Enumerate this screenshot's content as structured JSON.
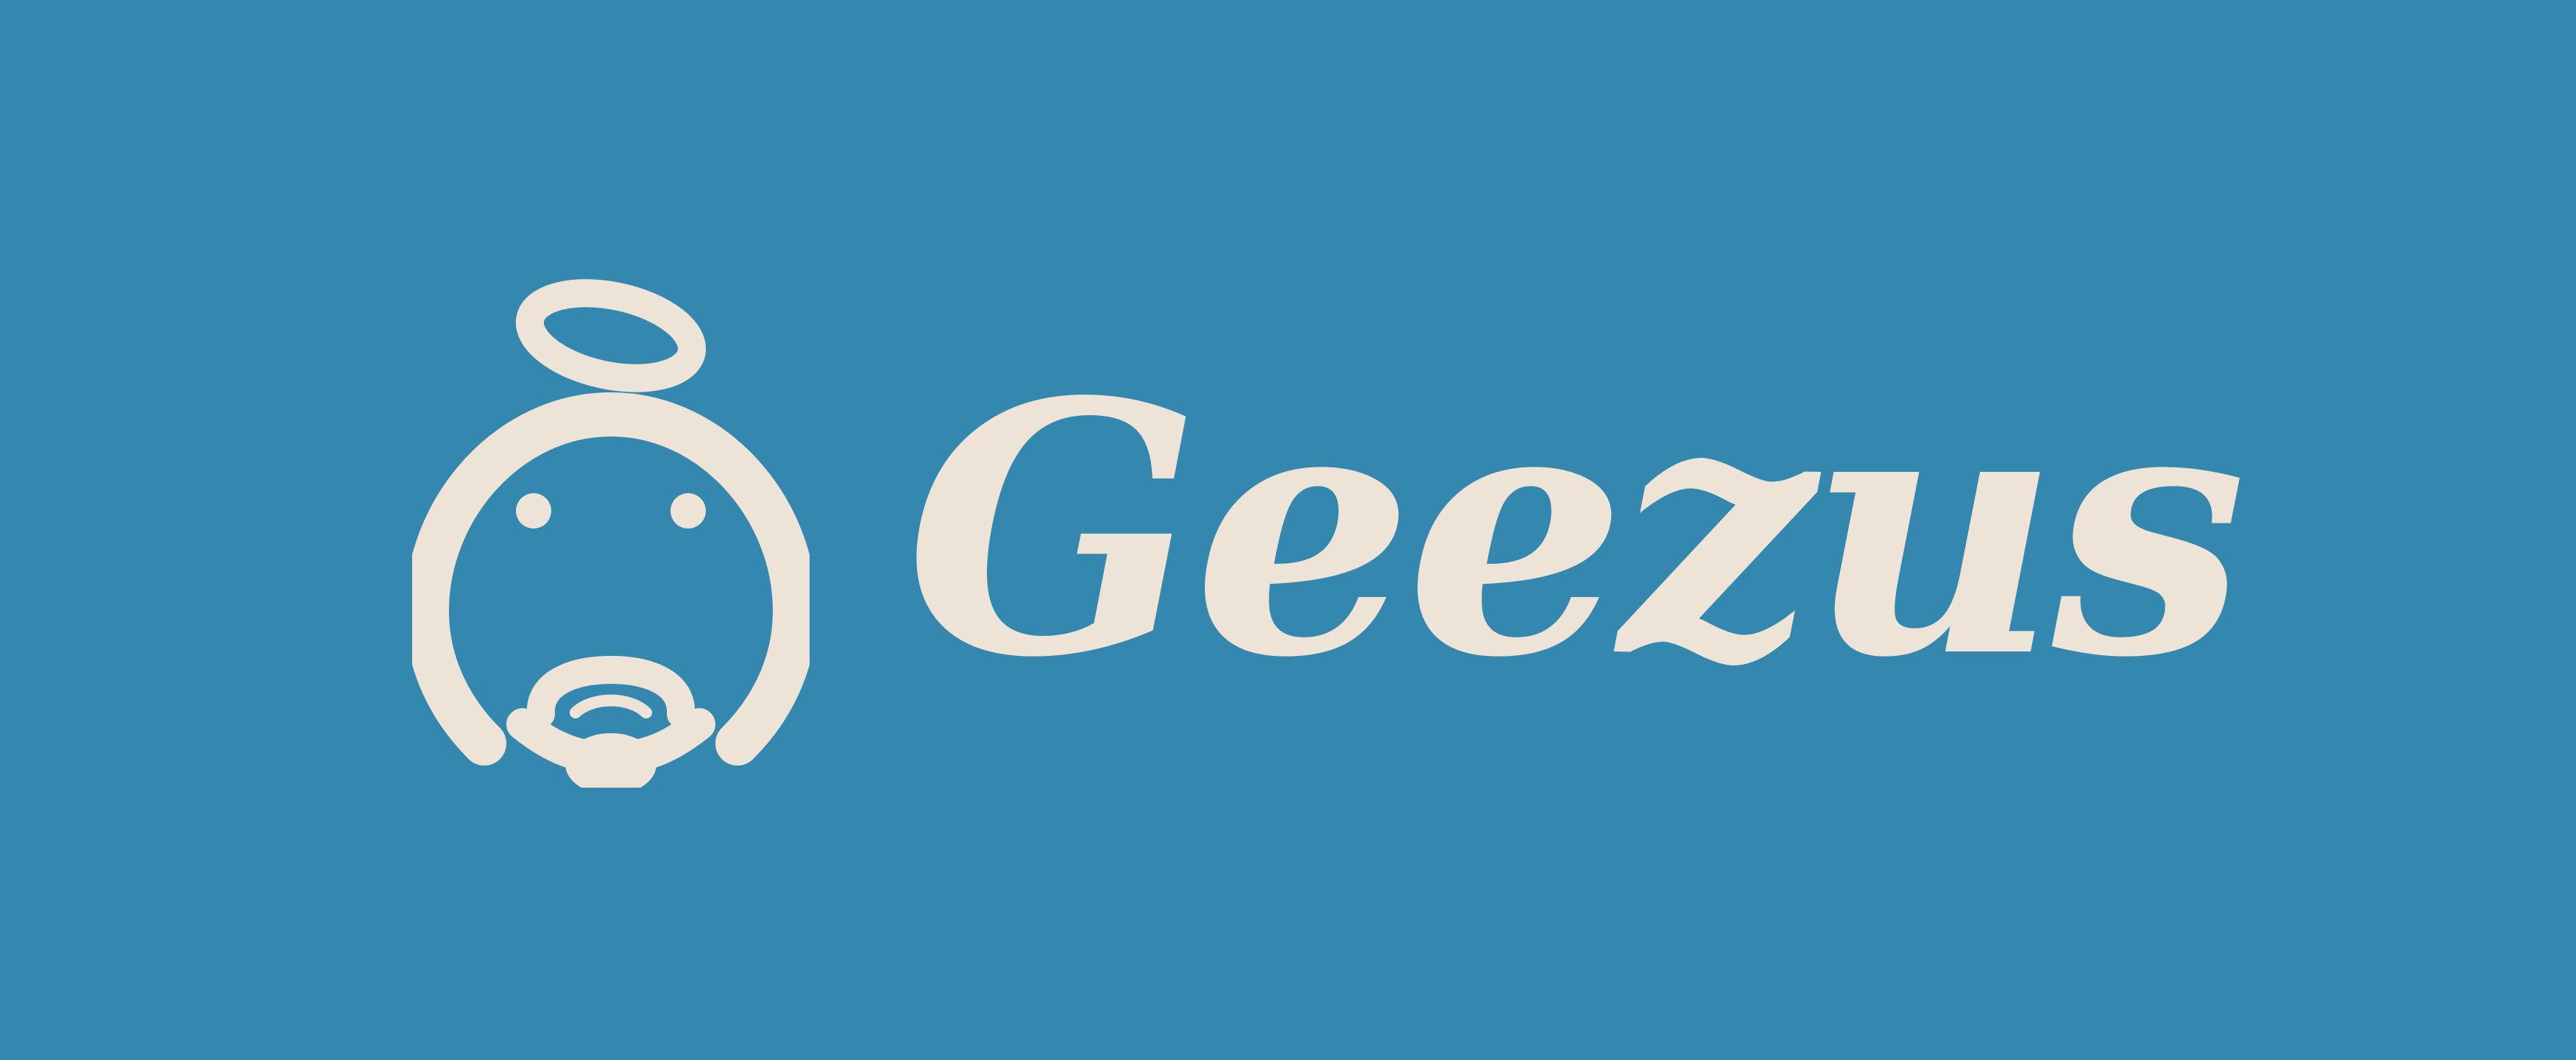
{
  "brand": {
    "name": "Geezus",
    "colors": {
      "background": "#3488b0",
      "foreground": "#ede3d6"
    },
    "logo_icon": "angel-face-icon"
  }
}
